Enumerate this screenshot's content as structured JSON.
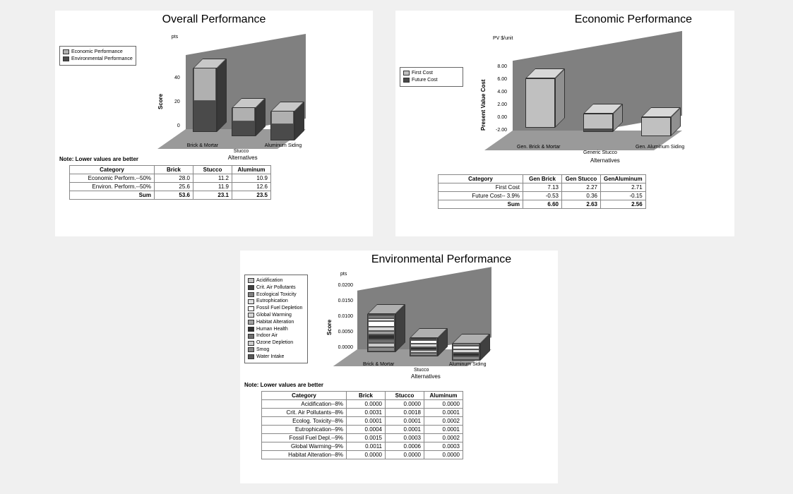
{
  "overall": {
    "title": "Overall Performance",
    "type": "stacked-bar-3d",
    "y_unit": "pts",
    "y_label": "Score",
    "yticks": [
      0,
      20,
      40
    ],
    "ylim": [
      0,
      60
    ],
    "categories": [
      "Brick & Mortar",
      "Stucco",
      "Aluminum Siding"
    ],
    "x_label": "Alternatives",
    "series": [
      {
        "name": "Economic Performance",
        "color": "#b0b0b0",
        "values": [
          28.0,
          11.2,
          10.9
        ]
      },
      {
        "name": "Environmental Performance",
        "color": "#4a4a4a",
        "values": [
          25.6,
          11.9,
          12.6
        ]
      }
    ],
    "note": "Note: Lower values are better",
    "table": {
      "columns": [
        "Category",
        "Brick",
        "Stucco",
        "Aluminum"
      ],
      "rows": [
        [
          "Economic Perform.--50%",
          "28.0",
          "11.2",
          "10.9"
        ],
        [
          "Environ. Perform.--50%",
          "25.6",
          "11.9",
          "12.6"
        ],
        [
          "Sum",
          "53.6",
          "23.1",
          "23.5"
        ]
      ]
    },
    "chart_bg": "#808080",
    "chart_floor": "#9a9a9a"
  },
  "economic": {
    "title": "Economic Performance",
    "type": "stacked-bar-3d",
    "y_unit": "PV $/unit",
    "y_label": "Present Value Cost",
    "yticks": [
      "-2.00",
      "0.00",
      "2.00",
      "4.00",
      "6.00",
      "8.00"
    ],
    "ylim": [
      -2,
      8
    ],
    "categories": [
      "Gen. Brick & Mortar",
      "Generic Stucco",
      "Gen. Aluminum Siding"
    ],
    "x_label": "Alternatives",
    "series": [
      {
        "name": "First Cost",
        "color": "#c0c0c0",
        "values": [
          7.13,
          2.27,
          2.71
        ]
      },
      {
        "name": "Future Cost",
        "color": "#4a4a4a",
        "values": [
          -0.53,
          0.36,
          -0.15
        ]
      }
    ],
    "table": {
      "columns": [
        "Category",
        "Gen Brick",
        "Gen Stucco",
        "GenAluminum"
      ],
      "rows": [
        [
          "First Cost",
          "7.13",
          "2.27",
          "2.71"
        ],
        [
          "Future Cost-- 3.9%",
          "-0.53",
          "0.36",
          "-0.15"
        ],
        [
          "Sum",
          "6.60",
          "2.63",
          "2.56"
        ]
      ]
    },
    "chart_bg": "#808080",
    "chart_floor": "#9a9a9a"
  },
  "environmental": {
    "title": "Environmental Performance",
    "type": "stacked-bar-3d",
    "y_unit": "pts",
    "y_label": "Score",
    "yticks": [
      "0.0000",
      "0.0050",
      "0.0100",
      "0.0150",
      "0.0200"
    ],
    "ylim": [
      0,
      0.02
    ],
    "categories": [
      "Brick & Mortar",
      "Stucco",
      "Aluminum Siding"
    ],
    "x_label": "Alternatives",
    "series": [
      {
        "name": "Acidification",
        "color": "#c0c0c0"
      },
      {
        "name": "Crit. Air Pollutants",
        "color": "#404040"
      },
      {
        "name": "Ecological Toxicity",
        "color": "#808080"
      },
      {
        "name": "Eutrophication",
        "color": "#e0e0e0"
      },
      {
        "name": "Fossil Fuel Depletion",
        "color": "#ffffff"
      },
      {
        "name": "Global Warming",
        "color": "#d8d8d8"
      },
      {
        "name": "Habitat Alteration",
        "color": "#a0a0a0"
      },
      {
        "name": "Human Health",
        "color": "#303030"
      },
      {
        "name": "Indoor Air",
        "color": "#707070"
      },
      {
        "name": "Ozone Depletion",
        "color": "#cccccc"
      },
      {
        "name": "Smog",
        "color": "#888888"
      },
      {
        "name": "Water Intake",
        "color": "#585858"
      }
    ],
    "totals": [
      0.012,
      0.0055,
      0.005
    ],
    "note": "Note: Lower values are better",
    "table": {
      "columns": [
        "Category",
        "Brick",
        "Stucco",
        "Aluminum"
      ],
      "rows": [
        [
          "Acidification--8%",
          "0.0000",
          "0.0000",
          "0.0000"
        ],
        [
          "Crit. Air Pollutants--8%",
          "0.0031",
          "0.0018",
          "0.0001"
        ],
        [
          "Ecolog. Toxicity--8%",
          "0.0001",
          "0.0001",
          "0.0002"
        ],
        [
          "Eutrophication--9%",
          "0.0004",
          "0.0001",
          "0.0001"
        ],
        [
          "Fossil Fuel Depl.--9%",
          "0.0015",
          "0.0003",
          "0.0002"
        ],
        [
          "Global Warming--9%",
          "0.0011",
          "0.0006",
          "0.0003"
        ],
        [
          "Habitat Alteration--8%",
          "0.0000",
          "0.0000",
          "0.0000"
        ]
      ]
    },
    "chart_bg": "#808080",
    "chart_floor": "#9a9a9a"
  }
}
